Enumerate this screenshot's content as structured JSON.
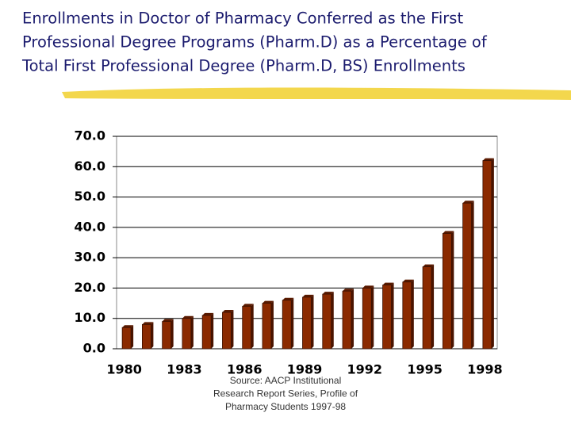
{
  "chart_data": {
    "type": "bar",
    "title": [
      "Enrollments in Doctor of Pharmacy Conferred as the First",
      "Professional Degree Programs (Pharm.D) as a Percentage of",
      "Total First Professional Degree (Pharm.D, BS) Enrollments"
    ],
    "categories": [
      "1980",
      null,
      null,
      "1983",
      null,
      null,
      "1986",
      null,
      null,
      "1989",
      null,
      null,
      "1992",
      null,
      null,
      "1995",
      null,
      null,
      "1998"
    ],
    "values": [
      7,
      8,
      9,
      10,
      11,
      12,
      14,
      15,
      16,
      17,
      18,
      19,
      20,
      21,
      22,
      27,
      38,
      48,
      62
    ],
    "color": "#8b2a00",
    "ylim": [
      0,
      70
    ],
    "yticks": [
      {
        "value": 0,
        "label": "0.0"
      },
      {
        "value": 10,
        "label": "10.0"
      },
      {
        "value": 20,
        "label": "20.0"
      },
      {
        "value": 30,
        "label": "30.0"
      },
      {
        "value": 40,
        "label": "40.0"
      },
      {
        "value": 50,
        "label": "50.0"
      },
      {
        "value": 60,
        "label": "60.0"
      },
      {
        "value": 70,
        "label": "70.0"
      }
    ],
    "grid": true,
    "source": [
      "Source: AACP Institutional",
      "Research Report Series, Profile of",
      "Pharmacy Students 1997-98"
    ]
  }
}
